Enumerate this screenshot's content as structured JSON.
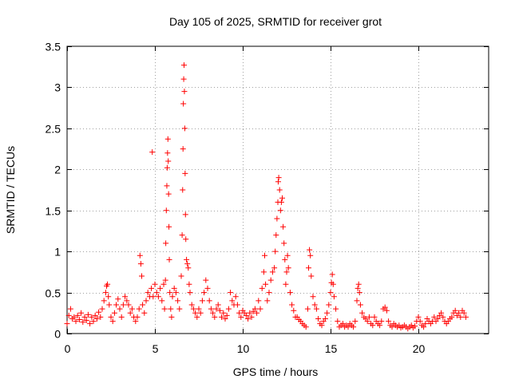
{
  "chart_data": {
    "type": "scatter",
    "title": "Day 105 of 2025, SRMTID for receiver grot",
    "xlabel": "GPS time / hours",
    "ylabel": "SRMTID / TECUs",
    "xlim": [
      0,
      24
    ],
    "ylim": [
      0,
      3.5
    ],
    "xticks": [
      0,
      5,
      10,
      15,
      20
    ],
    "xtick_labels": [
      "0",
      "5",
      "10",
      "15",
      "20"
    ],
    "yticks": [
      0,
      0.5,
      1,
      1.5,
      2,
      2.5,
      3,
      3.5
    ],
    "ytick_labels": [
      "0",
      "0.5",
      "1",
      "1.5",
      "2",
      "2.5",
      "3",
      "3.5"
    ],
    "grid": true,
    "marker": "plus",
    "color": "#ff0000",
    "series": [
      {
        "name": "SRMTID",
        "points": [
          [
            0.0,
            0.12
          ],
          [
            0.1,
            0.22
          ],
          [
            0.2,
            0.3
          ],
          [
            0.3,
            0.18
          ],
          [
            0.4,
            0.2
          ],
          [
            0.5,
            0.15
          ],
          [
            0.6,
            0.22
          ],
          [
            0.7,
            0.17
          ],
          [
            0.8,
            0.25
          ],
          [
            0.9,
            0.14
          ],
          [
            1.0,
            0.2
          ],
          [
            1.1,
            0.16
          ],
          [
            1.2,
            0.23
          ],
          [
            1.3,
            0.12
          ],
          [
            1.4,
            0.2
          ],
          [
            1.5,
            0.15
          ],
          [
            1.6,
            0.22
          ],
          [
            1.7,
            0.18
          ],
          [
            1.8,
            0.26
          ],
          [
            1.9,
            0.2
          ],
          [
            2.0,
            0.3
          ],
          [
            2.1,
            0.4
          ],
          [
            2.2,
            0.5
          ],
          [
            2.25,
            0.58
          ],
          [
            2.3,
            0.6
          ],
          [
            2.35,
            0.45
          ],
          [
            2.4,
            0.35
          ],
          [
            2.5,
            0.2
          ],
          [
            2.6,
            0.15
          ],
          [
            2.7,
            0.25
          ],
          [
            2.8,
            0.35
          ],
          [
            2.9,
            0.42
          ],
          [
            3.0,
            0.3
          ],
          [
            3.1,
            0.2
          ],
          [
            3.2,
            0.35
          ],
          [
            3.3,
            0.45
          ],
          [
            3.4,
            0.4
          ],
          [
            3.5,
            0.35
          ],
          [
            3.6,
            0.25
          ],
          [
            3.7,
            0.3
          ],
          [
            3.8,
            0.2
          ],
          [
            3.9,
            0.15
          ],
          [
            4.0,
            0.2
          ],
          [
            4.1,
            0.3
          ],
          [
            4.15,
            0.95
          ],
          [
            4.2,
            0.85
          ],
          [
            4.25,
            0.7
          ],
          [
            4.3,
            0.35
          ],
          [
            4.4,
            0.25
          ],
          [
            4.5,
            0.4
          ],
          [
            4.6,
            0.5
          ],
          [
            4.7,
            0.45
          ],
          [
            4.8,
            0.55
          ],
          [
            4.85,
            2.21
          ],
          [
            4.9,
            0.45
          ],
          [
            5.0,
            0.6
          ],
          [
            5.1,
            0.5
          ],
          [
            5.2,
            0.45
          ],
          [
            5.3,
            0.55
          ],
          [
            5.4,
            0.4
          ],
          [
            5.5,
            0.6
          ],
          [
            5.55,
            0.3
          ],
          [
            5.6,
            0.65
          ],
          [
            5.62,
            1.1
          ],
          [
            5.65,
            1.5
          ],
          [
            5.68,
            1.8
          ],
          [
            5.7,
            2.02
          ],
          [
            5.72,
            2.2
          ],
          [
            5.74,
            2.37
          ],
          [
            5.76,
            2.1
          ],
          [
            5.78,
            1.7
          ],
          [
            5.8,
            1.3
          ],
          [
            5.82,
            0.9
          ],
          [
            5.85,
            0.5
          ],
          [
            5.9,
            0.3
          ],
          [
            5.95,
            0.2
          ],
          [
            6.0,
            0.45
          ],
          [
            6.1,
            0.55
          ],
          [
            6.2,
            0.5
          ],
          [
            6.3,
            0.4
          ],
          [
            6.4,
            0.3
          ],
          [
            6.5,
            0.7
          ],
          [
            6.55,
            1.2
          ],
          [
            6.58,
            1.75
          ],
          [
            6.6,
            2.25
          ],
          [
            6.62,
            2.8
          ],
          [
            6.64,
            3.1
          ],
          [
            6.66,
            3.27
          ],
          [
            6.68,
            2.95
          ],
          [
            6.7,
            2.5
          ],
          [
            6.72,
            1.95
          ],
          [
            6.74,
            1.45
          ],
          [
            6.76,
            1.15
          ],
          [
            6.8,
            0.9
          ],
          [
            6.85,
            0.85
          ],
          [
            6.9,
            0.8
          ],
          [
            6.95,
            0.6
          ],
          [
            7.0,
            0.5
          ],
          [
            7.1,
            0.35
          ],
          [
            7.2,
            0.3
          ],
          [
            7.3,
            0.25
          ],
          [
            7.4,
            0.2
          ],
          [
            7.5,
            0.3
          ],
          [
            7.6,
            0.25
          ],
          [
            7.7,
            0.4
          ],
          [
            7.8,
            0.5
          ],
          [
            7.9,
            0.65
          ],
          [
            8.0,
            0.55
          ],
          [
            8.1,
            0.4
          ],
          [
            8.2,
            0.3
          ],
          [
            8.3,
            0.25
          ],
          [
            8.4,
            0.2
          ],
          [
            8.5,
            0.3
          ],
          [
            8.6,
            0.35
          ],
          [
            8.7,
            0.28
          ],
          [
            8.8,
            0.2
          ],
          [
            8.9,
            0.25
          ],
          [
            9.0,
            0.18
          ],
          [
            9.1,
            0.22
          ],
          [
            9.2,
            0.3
          ],
          [
            9.3,
            0.5
          ],
          [
            9.4,
            0.4
          ],
          [
            9.5,
            0.35
          ],
          [
            9.6,
            0.45
          ],
          [
            9.7,
            0.35
          ],
          [
            9.8,
            0.25
          ],
          [
            9.9,
            0.2
          ],
          [
            10.0,
            0.28
          ],
          [
            10.1,
            0.25
          ],
          [
            10.2,
            0.22
          ],
          [
            10.3,
            0.18
          ],
          [
            10.4,
            0.25
          ],
          [
            10.5,
            0.2
          ],
          [
            10.6,
            0.27
          ],
          [
            10.7,
            0.3
          ],
          [
            10.8,
            0.25
          ],
          [
            10.9,
            0.4
          ],
          [
            11.0,
            0.3
          ],
          [
            11.1,
            0.55
          ],
          [
            11.2,
            0.75
          ],
          [
            11.25,
            0.95
          ],
          [
            11.3,
            0.6
          ],
          [
            11.4,
            0.4
          ],
          [
            11.5,
            0.5
          ],
          [
            11.6,
            0.65
          ],
          [
            11.7,
            0.75
          ],
          [
            11.8,
            0.8
          ],
          [
            11.85,
            1.0
          ],
          [
            11.9,
            1.2
          ],
          [
            11.95,
            1.4
          ],
          [
            12.0,
            1.6
          ],
          [
            12.02,
            1.85
          ],
          [
            12.05,
            1.9
          ],
          [
            12.1,
            1.75
          ],
          [
            12.15,
            1.5
          ],
          [
            12.2,
            1.6
          ],
          [
            12.25,
            1.65
          ],
          [
            12.3,
            1.3
          ],
          [
            12.35,
            1.1
          ],
          [
            12.4,
            0.9
          ],
          [
            12.45,
            0.6
          ],
          [
            12.5,
            0.75
          ],
          [
            12.55,
            0.95
          ],
          [
            12.6,
            0.8
          ],
          [
            12.7,
            0.5
          ],
          [
            12.8,
            0.35
          ],
          [
            12.9,
            0.28
          ],
          [
            13.0,
            0.2
          ],
          [
            13.1,
            0.2
          ],
          [
            13.2,
            0.17
          ],
          [
            13.3,
            0.15
          ],
          [
            13.4,
            0.12
          ],
          [
            13.5,
            0.1
          ],
          [
            13.6,
            0.08
          ],
          [
            13.7,
            0.3
          ],
          [
            13.75,
            0.8
          ],
          [
            13.8,
            1.02
          ],
          [
            13.85,
            0.95
          ],
          [
            13.9,
            0.7
          ],
          [
            14.0,
            0.45
          ],
          [
            14.1,
            0.35
          ],
          [
            14.2,
            0.3
          ],
          [
            14.3,
            0.18
          ],
          [
            14.4,
            0.12
          ],
          [
            14.5,
            0.1
          ],
          [
            14.6,
            0.15
          ],
          [
            14.7,
            0.18
          ],
          [
            14.8,
            0.25
          ],
          [
            14.9,
            0.35
          ],
          [
            15.0,
            0.5
          ],
          [
            15.05,
            0.62
          ],
          [
            15.1,
            0.72
          ],
          [
            15.15,
            0.6
          ],
          [
            15.2,
            0.45
          ],
          [
            15.3,
            0.3
          ],
          [
            15.4,
            0.15
          ],
          [
            15.5,
            0.08
          ],
          [
            15.6,
            0.1
          ],
          [
            15.7,
            0.12
          ],
          [
            15.8,
            0.08
          ],
          [
            15.9,
            0.1
          ],
          [
            16.0,
            0.08
          ],
          [
            16.1,
            0.12
          ],
          [
            16.2,
            0.1
          ],
          [
            16.3,
            0.08
          ],
          [
            16.4,
            0.15
          ],
          [
            16.5,
            0.4
          ],
          [
            16.55,
            0.55
          ],
          [
            16.6,
            0.6
          ],
          [
            16.65,
            0.5
          ],
          [
            16.7,
            0.35
          ],
          [
            16.8,
            0.25
          ],
          [
            16.9,
            0.2
          ],
          [
            17.0,
            0.18
          ],
          [
            17.1,
            0.15
          ],
          [
            17.2,
            0.2
          ],
          [
            17.3,
            0.12
          ],
          [
            17.4,
            0.1
          ],
          [
            17.5,
            0.2
          ],
          [
            17.6,
            0.15
          ],
          [
            17.7,
            0.12
          ],
          [
            17.8,
            0.1
          ],
          [
            17.9,
            0.15
          ],
          [
            18.0,
            0.3
          ],
          [
            18.1,
            0.32
          ],
          [
            18.2,
            0.28
          ],
          [
            18.3,
            0.15
          ],
          [
            18.4,
            0.1
          ],
          [
            18.5,
            0.08
          ],
          [
            18.6,
            0.12
          ],
          [
            18.7,
            0.1
          ],
          [
            18.8,
            0.08
          ],
          [
            18.9,
            0.1
          ],
          [
            19.0,
            0.07
          ],
          [
            19.1,
            0.08
          ],
          [
            19.2,
            0.1
          ],
          [
            19.3,
            0.08
          ],
          [
            19.4,
            0.06
          ],
          [
            19.5,
            0.08
          ],
          [
            19.6,
            0.1
          ],
          [
            19.7,
            0.07
          ],
          [
            19.8,
            0.09
          ],
          [
            19.9,
            0.15
          ],
          [
            20.0,
            0.2
          ],
          [
            20.1,
            0.15
          ],
          [
            20.2,
            0.1
          ],
          [
            20.3,
            0.08
          ],
          [
            20.4,
            0.12
          ],
          [
            20.5,
            0.18
          ],
          [
            20.6,
            0.15
          ],
          [
            20.7,
            0.12
          ],
          [
            20.8,
            0.15
          ],
          [
            20.9,
            0.2
          ],
          [
            21.0,
            0.15
          ],
          [
            21.1,
            0.18
          ],
          [
            21.2,
            0.22
          ],
          [
            21.3,
            0.25
          ],
          [
            21.4,
            0.2
          ],
          [
            21.5,
            0.15
          ],
          [
            21.6,
            0.12
          ],
          [
            21.7,
            0.15
          ],
          [
            21.8,
            0.18
          ],
          [
            21.9,
            0.2
          ],
          [
            22.0,
            0.25
          ],
          [
            22.1,
            0.28
          ],
          [
            22.2,
            0.22
          ],
          [
            22.3,
            0.25
          ],
          [
            22.4,
            0.2
          ],
          [
            22.5,
            0.28
          ],
          [
            22.6,
            0.25
          ],
          [
            22.7,
            0.2
          ]
        ]
      }
    ]
  }
}
